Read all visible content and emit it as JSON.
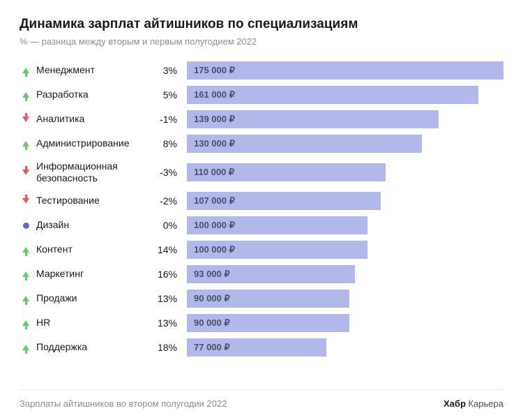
{
  "title": "Динамика зарплат айтишников по специализациям",
  "subtitle": "% — разница между вторым и первым полугодием 2022",
  "chart": {
    "type": "bar",
    "bar_color": "#b3b8ea",
    "max_value": 175000,
    "bar_max_width_pct": 100,
    "value_suffix": " ₽",
    "colors": {
      "up": "#6bc96b",
      "down": "#e85a5a",
      "flat": "#5a6db8",
      "text": "#1a1a1a",
      "subtext": "#8a8f99",
      "bar_label": "#4a4f6b",
      "divider": "#e6e8eb",
      "background": "#ffffff"
    },
    "label_fontsize": 14,
    "bar_label_fontsize": 13,
    "bar_label_weight": 700,
    "rows": [
      {
        "label": "Менеджмент",
        "pct": "3%",
        "trend": "up",
        "value": 175000,
        "value_label": "175 000 ₽"
      },
      {
        "label": "Разработка",
        "pct": "5%",
        "trend": "up",
        "value": 161000,
        "value_label": "161 000 ₽"
      },
      {
        "label": "Аналитика",
        "pct": "-1%",
        "trend": "down",
        "value": 139000,
        "value_label": "139 000 ₽"
      },
      {
        "label": "Администрирование",
        "pct": "8%",
        "trend": "up",
        "value": 130000,
        "value_label": "130 000 ₽"
      },
      {
        "label": "Информационная безопасность",
        "pct": "-3%",
        "trend": "down",
        "value": 110000,
        "value_label": "110 000 ₽",
        "tall": true
      },
      {
        "label": "Тестирование",
        "pct": "-2%",
        "trend": "down",
        "value": 107000,
        "value_label": "107 000 ₽"
      },
      {
        "label": "Дизайн",
        "pct": "0%",
        "trend": "flat",
        "value": 100000,
        "value_label": "100 000 ₽"
      },
      {
        "label": "Контент",
        "pct": "14%",
        "trend": "up",
        "value": 100000,
        "value_label": "100 000 ₽"
      },
      {
        "label": "Маркетинг",
        "pct": "16%",
        "trend": "up",
        "value": 93000,
        "value_label": "93 000 ₽"
      },
      {
        "label": "Продажи",
        "pct": "13%",
        "trend": "up",
        "value": 90000,
        "value_label": "90 000 ₽"
      },
      {
        "label": "HR",
        "pct": "13%",
        "trend": "up",
        "value": 90000,
        "value_label": "90 000 ₽"
      },
      {
        "label": "Поддержка",
        "pct": "18%",
        "trend": "up",
        "value": 77000,
        "value_label": "77 000 ₽"
      }
    ]
  },
  "footer": {
    "left": "Зарплаты айтишников во втором полугодии 2022",
    "brand_bold": "Хабр",
    "brand_rest": " Карьера"
  }
}
